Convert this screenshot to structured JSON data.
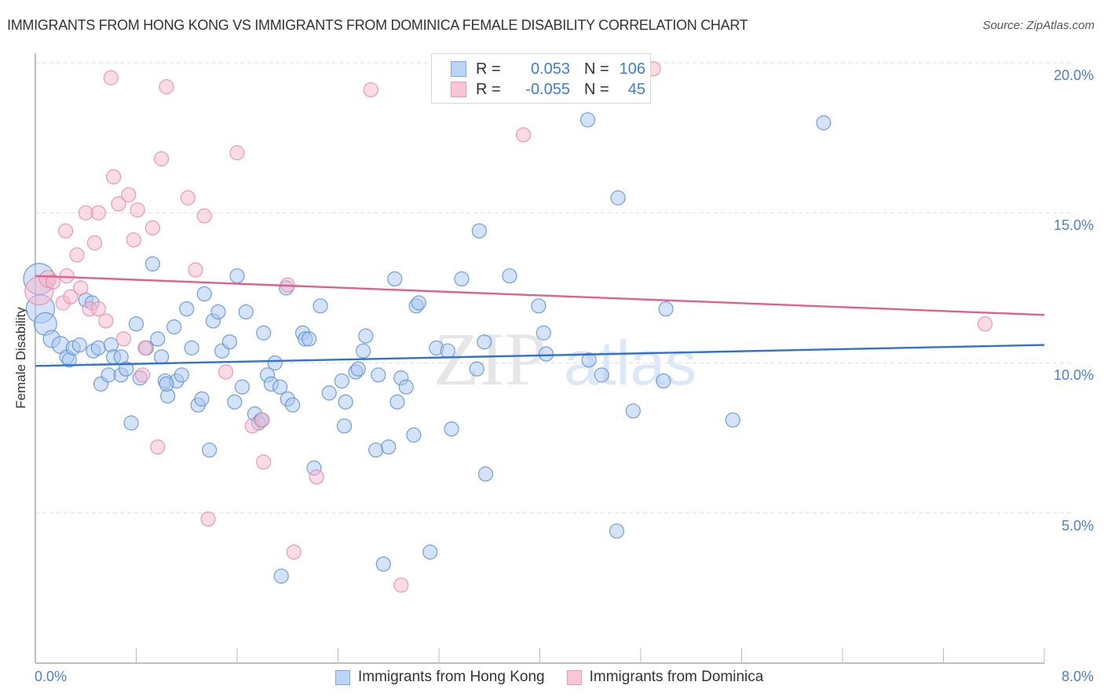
{
  "header": {
    "title": "IMMIGRANTS FROM HONG KONG VS IMMIGRANTS FROM DOMINICA FEMALE DISABILITY CORRELATION CHART",
    "source": "Source: ZipAtlas.com"
  },
  "watermark": {
    "zip": "ZIP",
    "atlas": "atlas"
  },
  "legend_top": {
    "rows": [
      {
        "r_label": "R =",
        "r_value": "0.053",
        "n_label": "N =",
        "n_value": "106",
        "color": "#a9c8f3"
      },
      {
        "r_label": "R =",
        "r_value": "-0.055",
        "n_label": "N =",
        "n_value": "45",
        "color": "#f7b8cc"
      }
    ]
  },
  "colors": {
    "blue_fill": "#a9c8f3",
    "blue_stroke": "#5a8fd8",
    "blue_line": "#2f72d0",
    "pink_fill": "#f7b8cc",
    "pink_stroke": "#e68aa8",
    "pink_line": "#e0608a",
    "tick_text": "#4a7fd4"
  },
  "chart_data": {
    "type": "scatter",
    "title": "IMMIGRANTS FROM HONG KONG VS IMMIGRANTS FROM DOMINICA FEMALE DISABILITY CORRELATION CHART",
    "xlabel": "",
    "ylabel": "Female Disability",
    "xlim": [
      0,
      8
    ],
    "ylim": [
      0,
      20.5
    ],
    "x_tick_labels": [
      "0.0%",
      "8.0%"
    ],
    "y_ticks": [
      5,
      10,
      15,
      20
    ],
    "y_tick_labels": [
      "5.0%",
      "10.0%",
      "15.0%",
      "20.0%"
    ],
    "grid": true,
    "legend_position": "top-center",
    "series": [
      {
        "name": "Immigrants from Hong Kong",
        "R": 0.053,
        "N": 106,
        "trend": {
          "x": [
            0,
            8
          ],
          "y": [
            9.9,
            10.6
          ]
        },
        "points": [
          [
            0.03,
            12.8,
            2.2
          ],
          [
            0.04,
            11.8,
            2.0
          ],
          [
            0.08,
            11.3,
            1.6
          ],
          [
            0.13,
            10.8,
            1.2
          ],
          [
            0.2,
            10.6,
            1.2
          ],
          [
            0.25,
            10.2,
            1.0
          ],
          [
            0.27,
            10.1,
            1.0
          ],
          [
            0.3,
            10.5,
            1.0
          ],
          [
            0.35,
            10.6,
            1.0
          ],
          [
            0.4,
            12.1,
            1.0
          ],
          [
            0.46,
            10.4,
            1.0
          ],
          [
            0.5,
            10.5,
            1.0
          ],
          [
            0.52,
            9.3,
            1.0
          ],
          [
            0.58,
            9.6,
            1.0
          ],
          [
            0.6,
            10.6,
            1.0
          ],
          [
            0.62,
            10.2,
            1.0
          ],
          [
            0.68,
            9.6,
            1.0
          ],
          [
            0.68,
            10.2,
            1.0
          ],
          [
            0.72,
            9.8,
            1.0
          ],
          [
            0.76,
            8.0,
            1.0
          ],
          [
            0.8,
            11.3,
            1.0
          ],
          [
            0.83,
            9.5,
            1.0
          ],
          [
            0.88,
            10.5,
            1.0
          ],
          [
            0.93,
            13.3,
            1.0
          ],
          [
            0.97,
            10.8,
            1.0
          ],
          [
            1.0,
            10.2,
            1.0
          ],
          [
            1.03,
            9.4,
            1.0
          ],
          [
            1.05,
            8.9,
            1.0
          ],
          [
            1.1,
            11.2,
            1.0
          ],
          [
            1.12,
            9.4,
            1.0
          ],
          [
            1.16,
            9.6,
            1.0
          ],
          [
            1.2,
            11.8,
            1.0
          ],
          [
            1.24,
            10.5,
            1.0
          ],
          [
            1.29,
            8.6,
            1.0
          ],
          [
            1.32,
            8.8,
            1.0
          ],
          [
            1.34,
            12.3,
            1.0
          ],
          [
            1.38,
            7.1,
            1.0
          ],
          [
            1.41,
            11.4,
            1.0
          ],
          [
            1.45,
            11.7,
            1.0
          ],
          [
            1.48,
            10.4,
            1.0
          ],
          [
            1.54,
            10.7,
            1.0
          ],
          [
            1.58,
            8.7,
            1.0
          ],
          [
            1.6,
            12.9,
            1.0
          ],
          [
            1.64,
            9.2,
            1.0
          ],
          [
            1.67,
            11.7,
            1.0
          ],
          [
            1.74,
            8.3,
            1.0
          ],
          [
            1.77,
            8.0,
            1.0
          ],
          [
            1.79,
            8.1,
            1.0
          ],
          [
            1.81,
            11.0,
            1.0
          ],
          [
            1.84,
            9.6,
            1.0
          ],
          [
            1.87,
            9.3,
            1.0
          ],
          [
            1.9,
            10.0,
            1.0
          ],
          [
            1.94,
            9.2,
            1.0
          ],
          [
            1.95,
            2.9,
            1.0
          ],
          [
            1.99,
            12.5,
            1.0
          ],
          [
            2.0,
            8.8,
            1.0
          ],
          [
            2.04,
            8.6,
            1.0
          ],
          [
            2.12,
            11.0,
            1.0
          ],
          [
            2.14,
            10.8,
            1.0
          ],
          [
            2.21,
            6.5,
            1.0
          ],
          [
            2.26,
            11.9,
            1.0
          ],
          [
            2.33,
            9.0,
            1.0
          ],
          [
            2.43,
            9.4,
            1.0
          ],
          [
            2.46,
            8.7,
            1.0
          ],
          [
            2.45,
            7.9,
            1.0
          ],
          [
            2.54,
            9.7,
            1.0
          ],
          [
            2.56,
            9.8,
            1.0
          ],
          [
            2.6,
            10.4,
            1.0
          ],
          [
            2.62,
            10.9,
            1.0
          ],
          [
            2.7,
            7.1,
            1.0
          ],
          [
            2.72,
            9.6,
            1.0
          ],
          [
            2.76,
            3.3,
            1.0
          ],
          [
            2.8,
            7.2,
            1.0
          ],
          [
            2.85,
            12.8,
            1.0
          ],
          [
            2.87,
            8.7,
            1.0
          ],
          [
            2.9,
            9.5,
            1.0
          ],
          [
            2.94,
            9.2,
            1.0
          ],
          [
            3.0,
            7.6,
            1.0
          ],
          [
            3.02,
            11.9,
            1.0
          ],
          [
            3.04,
            12.0,
            1.0
          ],
          [
            3.13,
            3.7,
            1.0
          ],
          [
            3.18,
            10.5,
            1.0
          ],
          [
            3.27,
            10.4,
            1.0
          ],
          [
            3.3,
            7.8,
            1.0
          ],
          [
            3.38,
            12.8,
            1.0
          ],
          [
            3.5,
            9.8,
            1.0
          ],
          [
            3.52,
            14.4,
            1.0
          ],
          [
            3.56,
            10.7,
            1.0
          ],
          [
            3.57,
            6.3,
            1.0
          ],
          [
            3.76,
            12.9,
            1.0
          ],
          [
            3.99,
            11.9,
            1.0
          ],
          [
            4.03,
            11.0,
            1.0
          ],
          [
            4.05,
            10.3,
            1.0
          ],
          [
            4.39,
            10.1,
            1.0
          ],
          [
            4.38,
            18.1,
            1.0
          ],
          [
            4.49,
            9.6,
            1.0
          ],
          [
            4.61,
            4.4,
            1.0
          ],
          [
            4.62,
            15.5,
            1.0
          ],
          [
            4.74,
            8.4,
            1.0
          ],
          [
            4.98,
            9.4,
            1.0
          ],
          [
            5.0,
            11.8,
            1.0
          ],
          [
            5.53,
            8.1,
            1.0
          ],
          [
            6.25,
            18.0,
            1.0
          ],
          [
            1.04,
            9.3,
            1.0
          ],
          [
            0.45,
            12.0,
            1.0
          ],
          [
            2.17,
            10.8,
            1.0
          ]
        ]
      },
      {
        "name": "Immigrants from Dominica",
        "R": -0.055,
        "N": 45,
        "trend": {
          "x": [
            0,
            8
          ],
          "y": [
            12.9,
            11.6
          ]
        },
        "points": [
          [
            0.03,
            12.4,
            2.0
          ],
          [
            0.1,
            12.8,
            1.2
          ],
          [
            0.14,
            12.7,
            1.0
          ],
          [
            0.22,
            12.0,
            1.0
          ],
          [
            0.25,
            12.9,
            1.0
          ],
          [
            0.28,
            12.2,
            1.0
          ],
          [
            0.24,
            14.4,
            1.0
          ],
          [
            0.33,
            13.6,
            1.0
          ],
          [
            0.36,
            12.5,
            1.0
          ],
          [
            0.4,
            15.0,
            1.0
          ],
          [
            0.43,
            11.8,
            1.0
          ],
          [
            0.47,
            14.0,
            1.0
          ],
          [
            0.5,
            15.0,
            1.0
          ],
          [
            0.56,
            11.4,
            1.0
          ],
          [
            0.6,
            19.5,
            1.0
          ],
          [
            0.62,
            16.2,
            1.0
          ],
          [
            0.66,
            15.3,
            1.0
          ],
          [
            0.7,
            10.8,
            1.0
          ],
          [
            0.74,
            15.6,
            1.0
          ],
          [
            0.78,
            14.1,
            1.0
          ],
          [
            0.81,
            15.1,
            1.0
          ],
          [
            0.85,
            9.6,
            1.0
          ],
          [
            0.87,
            10.5,
            1.0
          ],
          [
            0.93,
            14.5,
            1.0
          ],
          [
            0.97,
            7.2,
            1.0
          ],
          [
            1.0,
            16.8,
            1.0
          ],
          [
            1.04,
            19.2,
            1.0
          ],
          [
            1.21,
            15.5,
            1.0
          ],
          [
            1.27,
            13.1,
            1.0
          ],
          [
            1.34,
            14.9,
            1.0
          ],
          [
            1.37,
            4.8,
            1.0
          ],
          [
            1.51,
            9.7,
            1.0
          ],
          [
            1.6,
            17.0,
            1.0
          ],
          [
            1.72,
            7.9,
            1.0
          ],
          [
            1.8,
            8.1,
            1.0
          ],
          [
            1.81,
            6.7,
            1.0
          ],
          [
            2.05,
            3.7,
            1.0
          ],
          [
            2.0,
            12.6,
            1.0
          ],
          [
            2.23,
            6.2,
            1.0
          ],
          [
            2.66,
            19.1,
            1.0
          ],
          [
            2.9,
            2.6,
            1.0
          ],
          [
            3.87,
            17.6,
            1.0
          ],
          [
            4.9,
            19.8,
            1.0
          ],
          [
            7.53,
            11.3,
            1.0
          ],
          [
            0.5,
            11.8,
            1.0
          ]
        ]
      }
    ]
  },
  "bottom_legend": {
    "items": [
      {
        "label": "Immigrants from Hong Kong"
      },
      {
        "label": "Immigrants from Dominica"
      }
    ]
  }
}
